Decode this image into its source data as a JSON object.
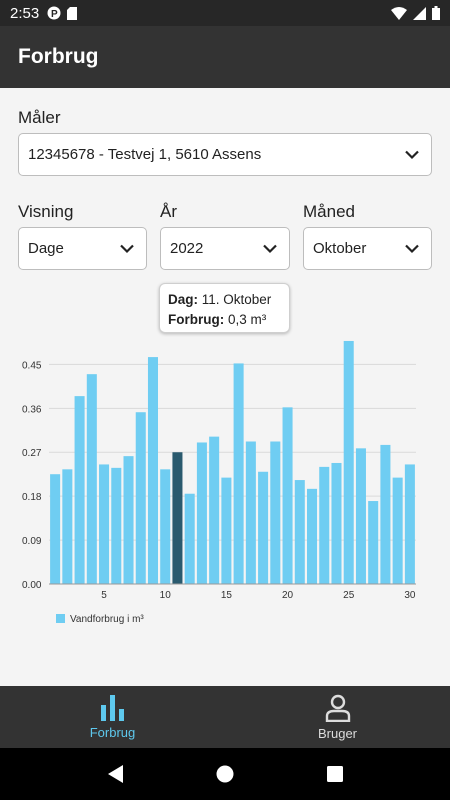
{
  "status_bar": {
    "time": "2:53"
  },
  "app_bar": {
    "title": "Forbrug"
  },
  "meter": {
    "label": "Måler",
    "value": "12345678 - Testvej 1, 5610 Assens"
  },
  "view": {
    "label": "Visning",
    "value": "Dage"
  },
  "year": {
    "label": "År",
    "value": "2022"
  },
  "month": {
    "label": "Måned",
    "value": "Oktober"
  },
  "tooltip": {
    "day_key": "Dag:",
    "day_value": "11. Oktober",
    "usage_key": "Forbrug:",
    "usage_value": "0,3 m³"
  },
  "chart_data": {
    "type": "bar",
    "categories": [
      1,
      2,
      3,
      4,
      5,
      6,
      7,
      8,
      9,
      10,
      11,
      12,
      13,
      14,
      15,
      16,
      17,
      18,
      19,
      20,
      21,
      22,
      23,
      24,
      25,
      26,
      27,
      28,
      29,
      30
    ],
    "series": [
      {
        "name": "Vandforbrug i m³",
        "values": [
          0.225,
          0.235,
          0.385,
          0.43,
          0.245,
          0.238,
          0.262,
          0.352,
          0.465,
          0.235,
          0.27,
          0.185,
          0.29,
          0.302,
          0.218,
          0.452,
          0.292,
          0.23,
          0.292,
          0.362,
          0.213,
          0.195,
          0.24,
          0.248,
          0.498,
          0.278,
          0.17,
          0.285,
          0.218,
          0.245
        ]
      }
    ],
    "highlight_index": 10,
    "ylim": [
      0,
      0.5
    ],
    "yticks": [
      "0.00",
      "0.09",
      "0.18",
      "0.27",
      "0.36",
      "0.45"
    ],
    "xticks": [
      5,
      10,
      15,
      20,
      25,
      30
    ],
    "colors": {
      "bar": "#6fcdf2",
      "highlight": "#2a5a6e"
    },
    "legend_position": "bottom-left",
    "grid": true
  },
  "bottom_nav": [
    {
      "label": "Forbrug",
      "icon": "bar-chart-icon",
      "active": true
    },
    {
      "label": "Bruger",
      "icon": "user-icon",
      "active": false
    }
  ]
}
